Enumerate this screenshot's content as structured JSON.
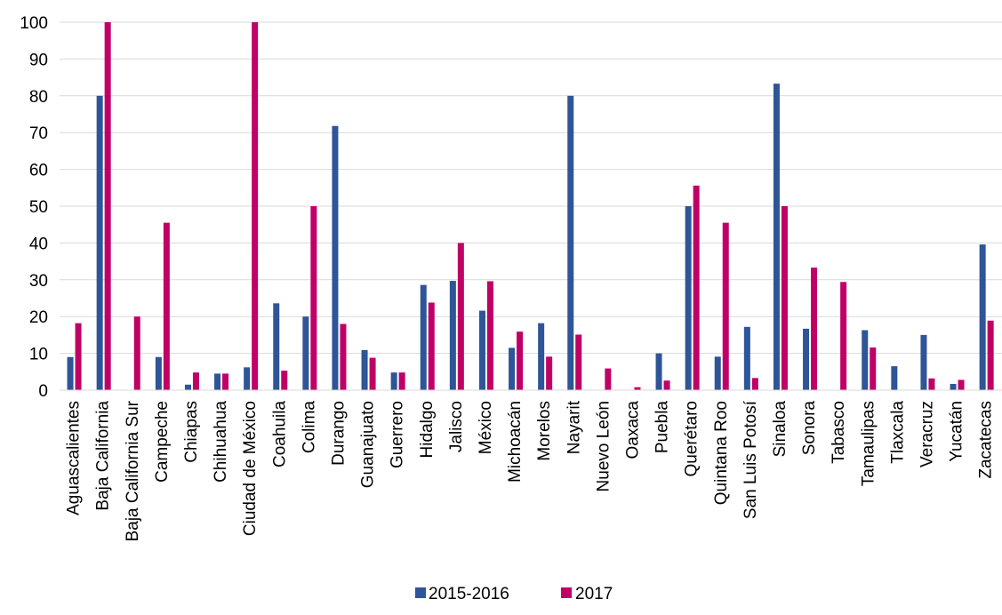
{
  "chart_data": {
    "type": "bar",
    "title": "",
    "xlabel": "",
    "ylabel": "",
    "ylim": [
      0,
      100
    ],
    "yticks": [
      0,
      10,
      20,
      30,
      40,
      50,
      60,
      70,
      80,
      90,
      100
    ],
    "grid": true,
    "legend_position": "bottom",
    "categories": [
      "Aguascalientes",
      "Baja California",
      "Baja California Sur",
      "Campeche",
      "Chiapas",
      "Chihuahua",
      "Ciudad de México",
      "Coahuila",
      "Colima",
      "Durango",
      "Guanajuato",
      "Guerrero",
      "Hidalgo",
      "Jalisco",
      "México",
      "Michoacán",
      "Morelos",
      "Nayarit",
      "Nuevo León",
      "Oaxaca",
      "Puebla",
      "Querétaro",
      "Quintana Roo",
      "San Luis Potosí",
      "Sinaloa",
      "Sonora",
      "Tabasco",
      "Tamaulipas",
      "Tlaxcala",
      "Veracruz",
      "Yucatán",
      "Zacatecas"
    ],
    "series": [
      {
        "name": "2015-2016",
        "color": "#2E5597",
        "values": [
          9,
          80,
          0,
          9,
          1.5,
          4.5,
          6.2,
          23.6,
          20,
          71.8,
          10.9,
          4.8,
          28.6,
          29.7,
          21.6,
          11.5,
          18.2,
          80,
          0,
          0,
          10,
          50,
          9.1,
          17.2,
          83.3,
          16.7,
          0,
          16.3,
          6.5,
          15,
          1.7,
          39.6
        ]
      },
      {
        "name": "2017",
        "color": "#C00066",
        "values": [
          18.2,
          100,
          20,
          45.5,
          4.8,
          4.5,
          100,
          5.3,
          50,
          18,
          8.8,
          4.8,
          23.8,
          40,
          29.6,
          15.9,
          9.1,
          15.1,
          5.9,
          0.8,
          2.6,
          55.6,
          45.5,
          3.3,
          50,
          33.3,
          29.4,
          11.6,
          0,
          3.2,
          2.8,
          18.9
        ]
      }
    ]
  }
}
